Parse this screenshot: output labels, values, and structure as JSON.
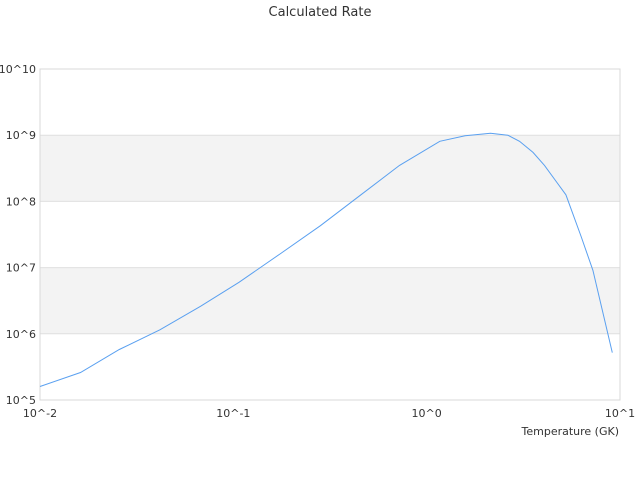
{
  "chart_data": {
    "type": "line",
    "title": "Calculated Rate",
    "xlabel": "Temperature (GK)",
    "ylabel": "",
    "x_scale": "log",
    "y_scale": "log",
    "xlim": [
      0.01,
      10
    ],
    "ylim": [
      100000,
      10000000000
    ],
    "x_ticks": [
      "10^-2",
      "10^-1",
      "10^0",
      "10^1"
    ],
    "y_ticks": [
      "10^5",
      "10^6",
      "10^7",
      "10^8",
      "10^9",
      "10^10"
    ],
    "grid": true,
    "banded_background": true,
    "legend": "none",
    "line_color": "#5aa0f0",
    "band_color": "#f3f3f3",
    "series": [
      {
        "x": [
          0.01,
          0.0162,
          0.0257,
          0.0417,
          0.0676,
          0.107,
          0.174,
          0.282,
          0.457,
          0.724,
          1.17,
          1.58,
          2.14,
          2.63,
          3.02,
          3.55,
          4.07,
          4.68,
          5.25,
          6.31,
          7.24,
          9.12
        ],
        "y": [
          160000,
          260000,
          580000,
          1150000,
          2600000,
          6000000,
          16000000,
          43000000,
          126000000,
          350000000,
          810000000,
          980000000,
          1070000000,
          1000000000,
          810000000,
          550000000,
          350000000,
          200000000,
          126000000,
          29000000,
          9100000,
          520000
        ]
      }
    ]
  }
}
